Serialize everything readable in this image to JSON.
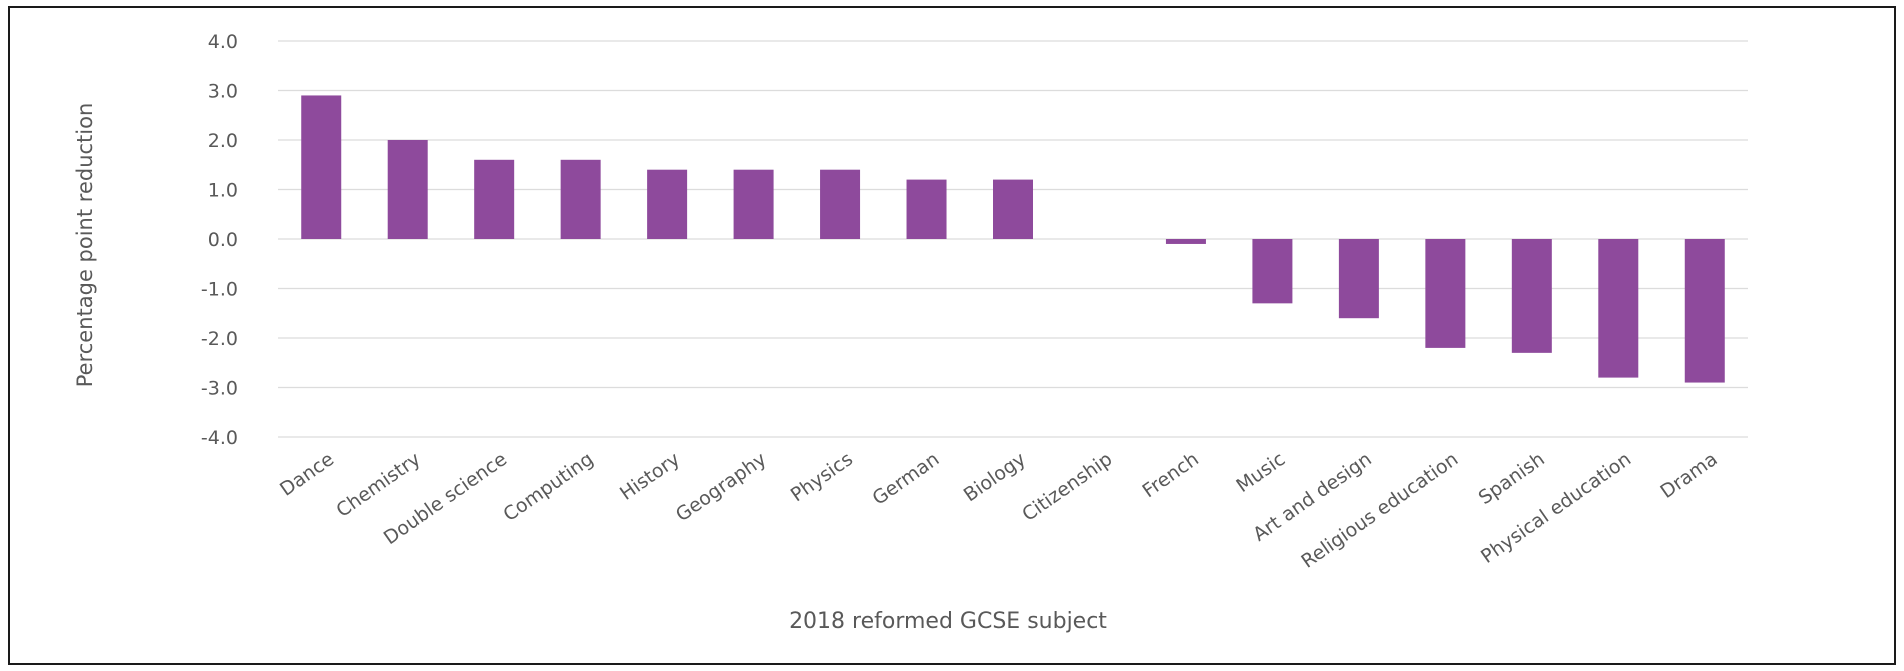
{
  "chart_data": {
    "type": "bar",
    "xlabel": "2018 reformed GCSE subject",
    "ylabel": "Percentage point reduction",
    "ylim": [
      -4,
      4
    ],
    "yticks": [
      "4.0",
      "3.0",
      "2.0",
      "1.0",
      "0.0",
      "-1.0",
      "-2.0",
      "-3.0",
      "-4.0"
    ],
    "grid": true,
    "bar_color": "#8e4a9c",
    "categories": [
      "Dance",
      "Chemistry",
      "Double science",
      "Computing",
      "History",
      "Geography",
      "Physics",
      "German",
      "Biology",
      "Citizenship",
      "French",
      "Music",
      "Art and design",
      "Religious education",
      "Spanish",
      "Physical education",
      "Drama"
    ],
    "values": [
      2.9,
      2.0,
      1.6,
      1.6,
      1.4,
      1.4,
      1.4,
      1.2,
      1.2,
      0.0,
      -0.1,
      -1.3,
      -1.6,
      -2.2,
      -2.3,
      -2.8,
      -2.9
    ]
  }
}
